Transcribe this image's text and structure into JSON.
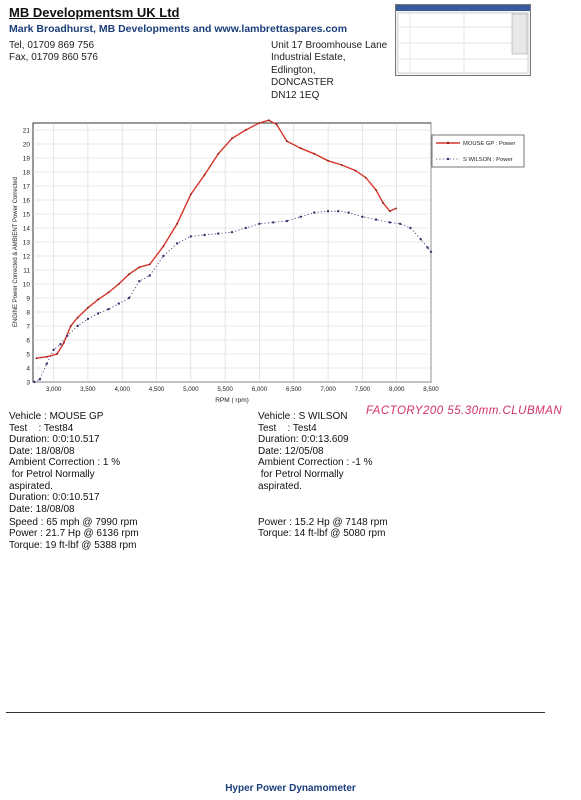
{
  "header": {
    "company": "MB Developmentsm UK Ltd",
    "subtitle": "Mark Broadhurst, MB Developments and www.lambrettaspares.com",
    "tel": "Tel, 01709 869 756",
    "fax": "Fax, 01709 860 576",
    "address": [
      "Unit 17 Broomhouse Lane",
      "Industrial Estate,",
      "Edlington,",
      "DONCASTER",
      "DN12 1EQ"
    ]
  },
  "chart_data": {
    "type": "line",
    "title": "",
    "xlabel": "RPM ( rpm)",
    "ylabel": "ENGINE Power Corrected & AMBIENT Power Corrected",
    "xlim": [
      2700,
      8500
    ],
    "ylim": [
      3,
      21.5
    ],
    "grid": true,
    "legend_placement": "right",
    "x_ticks": [
      3000,
      3500,
      4000,
      4500,
      5000,
      5500,
      6000,
      6500,
      7000,
      7500,
      8000,
      8500
    ],
    "x_tick_labels": [
      "3,000",
      "3,500",
      "4,000",
      "4,500",
      "5,000",
      "5,500",
      "6,000",
      "6,500",
      "7,000",
      "7,500",
      "8,000",
      "8,500"
    ],
    "y_ticks": [
      3,
      4,
      5,
      6,
      7,
      8,
      9,
      10,
      11,
      12,
      13,
      14,
      15,
      16,
      17,
      18,
      19,
      20,
      21
    ],
    "series": [
      {
        "name": "MOUSE GP : Power",
        "color": "#d9352a",
        "x": [
          2750,
          2900,
          3050,
          3150,
          3250,
          3350,
          3500,
          3650,
          3800,
          3950,
          4100,
          4250,
          4400,
          4600,
          4800,
          5000,
          5200,
          5400,
          5600,
          5800,
          6000,
          6136,
          6250,
          6400,
          6600,
          6800,
          7000,
          7200,
          7400,
          7550,
          7700,
          7800,
          7900,
          7990
        ],
        "y": [
          4.7,
          4.8,
          5.0,
          5.8,
          7.0,
          7.6,
          8.3,
          8.9,
          9.4,
          10.0,
          10.7,
          11.2,
          11.4,
          12.7,
          14.3,
          16.4,
          17.8,
          19.3,
          20.4,
          21.0,
          21.5,
          21.7,
          21.4,
          20.2,
          19.7,
          19.3,
          18.8,
          18.5,
          18.1,
          17.6,
          16.7,
          15.8,
          15.2,
          15.4
        ]
      },
      {
        "name": "S WILSON : Power",
        "color": "#3b2e6e",
        "x": [
          2720,
          2800,
          2900,
          3000,
          3100,
          3200,
          3350,
          3500,
          3650,
          3800,
          3950,
          4100,
          4250,
          4400,
          4600,
          4800,
          5000,
          5200,
          5400,
          5600,
          5800,
          6000,
          6200,
          6400,
          6600,
          6800,
          7000,
          7148,
          7300,
          7500,
          7700,
          7900,
          8050,
          8200,
          8350,
          8450,
          8500
        ],
        "y": [
          3.0,
          3.2,
          4.3,
          5.3,
          5.7,
          6.3,
          7.0,
          7.5,
          7.9,
          8.2,
          8.6,
          9.0,
          10.2,
          10.6,
          12.0,
          12.9,
          13.4,
          13.5,
          13.6,
          13.7,
          14.0,
          14.3,
          14.4,
          14.5,
          14.8,
          15.1,
          15.2,
          15.2,
          15.1,
          14.8,
          14.6,
          14.4,
          14.3,
          14.0,
          13.2,
          12.6,
          12.3
        ]
      }
    ]
  },
  "vehicle1": {
    "vehicle": "Vehicle : MOUSE GP",
    "test": "Test    : Test84",
    "duration": "Duration: 0:0:10.517",
    "date": "Date: 18/08/08",
    "ambient": "Ambient Correction : 1 %",
    "petrol": " for Petrol Normally",
    "aspirated": "aspirated.",
    "duration2": "Duration: 0:0:10.517",
    "date2": "Date: 18/08/08",
    "speed": "Speed : 65 mph @ 7990 rpm",
    "power": "Power : 21.7 Hp @ 6136 rpm",
    "torque": "Torque: 19 ft-lbf @ 5388 rpm"
  },
  "vehicle2": {
    "vehicle": "Vehicle : S WILSON",
    "test": "Test    : Test4",
    "duration": "Duration: 0:0:13.609",
    "date": "Date: 12/05/08",
    "ambient": "Ambient Correction : -1 %",
    "petrol": " for Petrol Normally",
    "aspirated": "aspirated.",
    "power": "Power : 15.2 Hp @ 7148 rpm",
    "torque": "Torque: 14 ft-lbf @ 5080 rpm"
  },
  "annotation": "FACTORY200 55.30mm.CLUBMAN",
  "footer": "Hyper Power Dynamometer"
}
